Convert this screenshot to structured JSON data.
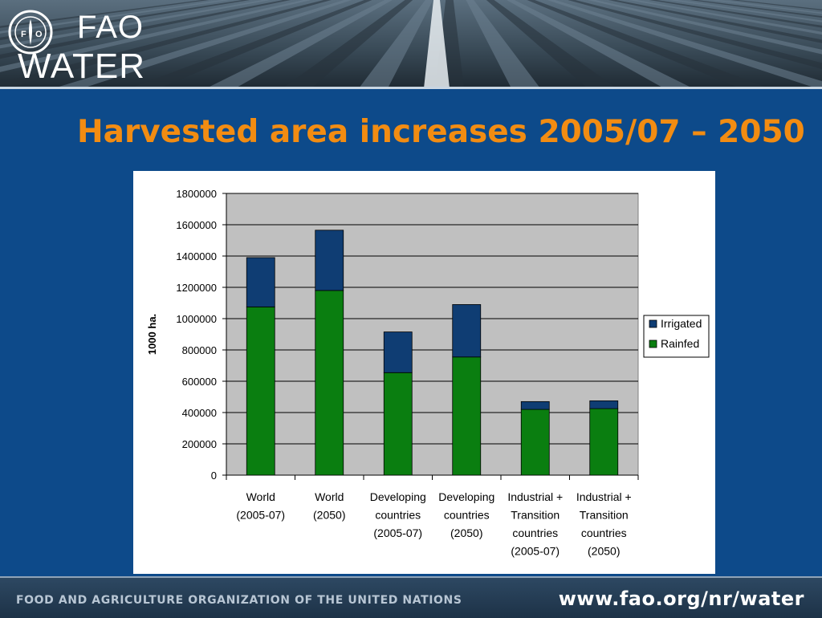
{
  "header": {
    "logo_text_top": "FAO",
    "logo_text_bottom": "WATER",
    "emblem_motto": "FIAT PANIS",
    "emblem_letters": "FAO"
  },
  "title": "Harvested area increases 2005/07 – 2050",
  "footer": {
    "organization": "FOOD AND AGRICULTURE ORGANIZATION OF THE UNITED NATIONS",
    "url": "www.fao.org/nr/water"
  },
  "colors": {
    "background": "#0d4a8a",
    "title": "#f28c12",
    "irrigated": "#0f3d73",
    "rainfed": "#0a7e10",
    "plot_area": "#c0c0c0"
  },
  "chart_data": {
    "type": "bar",
    "stacked": true,
    "ylabel": "1000 ha.",
    "xlabel": "",
    "ylim": [
      0,
      1800000
    ],
    "yticks": [
      0,
      200000,
      400000,
      600000,
      800000,
      1000000,
      1200000,
      1400000,
      1600000,
      1800000
    ],
    "legend_position": "right",
    "grid": true,
    "categories": [
      [
        "World",
        "(2005-07)"
      ],
      [
        "World",
        "(2050)"
      ],
      [
        "Developing",
        "countries",
        "(2005-07)"
      ],
      [
        "Developing",
        "countries",
        "(2050)"
      ],
      [
        "Industrial +",
        "Transition",
        "countries",
        "(2005-07)"
      ],
      [
        "Industrial +",
        "Transition",
        "countries",
        "(2050)"
      ]
    ],
    "series": [
      {
        "name": "Rainfed",
        "values": [
          1075000,
          1180000,
          655000,
          755000,
          420000,
          425000
        ]
      },
      {
        "name": "Irrigated",
        "values": [
          315000,
          385000,
          260000,
          335000,
          50000,
          50000
        ]
      }
    ],
    "legend_order": [
      "Irrigated",
      "Rainfed"
    ]
  }
}
